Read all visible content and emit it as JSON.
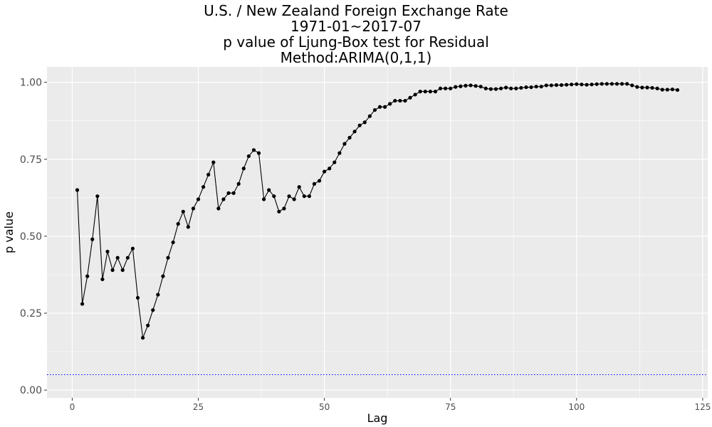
{
  "chart_data": {
    "type": "line",
    "title_lines": [
      "U.S. / New Zealand Foreign Exchange Rate",
      "1971-01~2017-07",
      "p value of Ljung-Box test for Residual",
      "Method:ARIMA(0,1,1)"
    ],
    "xlabel": "Lag",
    "ylabel": "p value",
    "xlim": [
      -5,
      126
    ],
    "ylim": [
      -0.025,
      1.05
    ],
    "x_ticks": [
      0,
      25,
      50,
      75,
      100,
      125
    ],
    "x_tick_labels": [
      "0",
      "25",
      "50",
      "75",
      "100",
      "125"
    ],
    "y_ticks": [
      0,
      0.25,
      0.5,
      0.75,
      1.0
    ],
    "y_tick_labels": [
      "0.00",
      "0.25",
      "0.50",
      "0.75",
      "1.00"
    ],
    "grid": true,
    "reference_line": {
      "y": 0.05,
      "color": "#0000ff",
      "style": "dotted"
    },
    "series": [
      {
        "color": "#000000",
        "x": [
          1,
          2,
          3,
          4,
          5,
          6,
          7,
          8,
          9,
          10,
          11,
          12,
          13,
          14,
          15,
          16,
          17,
          18,
          19,
          20,
          21,
          22,
          23,
          24,
          25,
          26,
          27,
          28,
          29,
          30,
          31,
          32,
          33,
          34,
          35,
          36,
          37,
          38,
          39,
          40,
          41,
          42,
          43,
          44,
          45,
          46,
          47,
          48,
          49,
          50,
          51,
          52,
          53,
          54,
          55,
          56,
          57,
          58,
          59,
          60,
          61,
          62,
          63,
          64,
          65,
          66,
          67,
          68,
          69,
          70,
          71,
          72,
          73,
          74,
          75,
          76,
          77,
          78,
          79,
          80,
          81,
          82,
          83,
          84,
          85,
          86,
          87,
          88,
          89,
          90,
          91,
          92,
          93,
          94,
          95,
          96,
          97,
          98,
          99,
          100,
          101,
          102,
          103,
          104,
          105,
          106,
          107,
          108,
          109,
          110,
          111,
          112,
          113,
          114,
          115,
          116,
          117,
          118,
          119,
          120
        ],
        "values": [
          0.65,
          0.28,
          0.37,
          0.49,
          0.63,
          0.36,
          0.45,
          0.39,
          0.43,
          0.39,
          0.43,
          0.46,
          0.3,
          0.17,
          0.21,
          0.26,
          0.31,
          0.37,
          0.43,
          0.48,
          0.54,
          0.58,
          0.53,
          0.59,
          0.62,
          0.66,
          0.7,
          0.74,
          0.59,
          0.62,
          0.64,
          0.64,
          0.67,
          0.72,
          0.76,
          0.78,
          0.77,
          0.62,
          0.65,
          0.63,
          0.58,
          0.59,
          0.63,
          0.62,
          0.66,
          0.63,
          0.63,
          0.67,
          0.68,
          0.71,
          0.72,
          0.74,
          0.77,
          0.8,
          0.82,
          0.84,
          0.86,
          0.87,
          0.89,
          0.91,
          0.92,
          0.92,
          0.93,
          0.94,
          0.94,
          0.94,
          0.95,
          0.96,
          0.97,
          0.97,
          0.97,
          0.97,
          0.98,
          0.98,
          0.98,
          0.985,
          0.987,
          0.989,
          0.99,
          0.988,
          0.986,
          0.98,
          0.978,
          0.978,
          0.98,
          0.983,
          0.98,
          0.98,
          0.982,
          0.984,
          0.984,
          0.986,
          0.986,
          0.99,
          0.99,
          0.991,
          0.991,
          0.992,
          0.993,
          0.994,
          0.993,
          0.992,
          0.993,
          0.994,
          0.995,
          0.995,
          0.995,
          0.995,
          0.995,
          0.995,
          0.99,
          0.985,
          0.983,
          0.983,
          0.982,
          0.98,
          0.976,
          0.976,
          0.977,
          0.975
        ]
      }
    ]
  }
}
